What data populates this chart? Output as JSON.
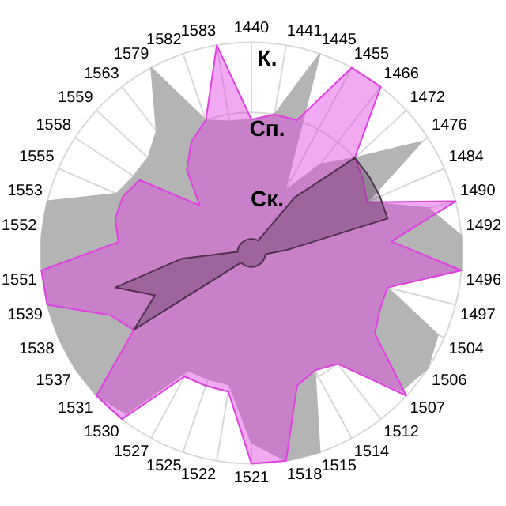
{
  "chart_data": {
    "type": "radar",
    "categories": [
      "1440",
      "1441",
      "1445",
      "1455",
      "1466",
      "1472",
      "1476",
      "1484",
      "1490",
      "1492",
      "1496",
      "1497",
      "1504",
      "1506",
      "1507",
      "1512",
      "1514",
      "1515",
      "1518",
      "1521",
      "1522",
      "1525",
      "1527",
      "1530",
      "1531",
      "1537",
      "1538",
      "1539",
      "1551",
      "1552",
      "1553",
      "1555",
      "1558",
      "1559",
      "1563",
      "1579",
      "1582",
      "1583"
    ],
    "ylim": [
      0,
      3
    ],
    "yticks": [
      {
        "value": 1,
        "label": "Ск."
      },
      {
        "value": 2,
        "label": "Сп."
      },
      {
        "value": 3,
        "label": "К."
      }
    ],
    "grid": true,
    "legend": false,
    "marker": "none",
    "series": [
      {
        "color": "#b4b4b4",
        "values": [
          1.9,
          2,
          3,
          1,
          1.6,
          2,
          2.9,
          1.8,
          2.6,
          3,
          3,
          2,
          2.9,
          3,
          2.9,
          2,
          1.9,
          3,
          3,
          2.7,
          1.9,
          1.9,
          1.9,
          2.9,
          3,
          3,
          3,
          3,
          3,
          3,
          3,
          2.1,
          2,
          2,
          2.2,
          3,
          2,
          1.9
        ]
      },
      {
        "color": "#e040e0",
        "values": [
          1.9,
          2,
          2,
          3,
          3,
          2,
          1.9,
          1.8,
          3,
          2,
          3,
          2,
          2,
          2.1,
          3,
          2,
          1.9,
          2,
          3,
          3,
          2,
          2,
          2,
          3,
          3,
          2,
          2.2,
          3,
          3,
          1.9,
          2,
          2,
          1.9,
          1,
          1.5,
          1.8,
          2,
          3
        ]
      },
      {
        "color": "#503050",
        "values": [
          0.2,
          0.2,
          0.2,
          0.2,
          1,
          2,
          2,
          2,
          2,
          0.5,
          0.2,
          0.2,
          0.2,
          0.2,
          0.2,
          0.2,
          0.2,
          0.2,
          0.2,
          0.2,
          0.2,
          0.2,
          0.2,
          0.2,
          0.2,
          2,
          1.5,
          2,
          1,
          0.2,
          0.2,
          0.2,
          0.2,
          0.2,
          0.2,
          0.2,
          0.2,
          0.2
        ]
      }
    ]
  }
}
